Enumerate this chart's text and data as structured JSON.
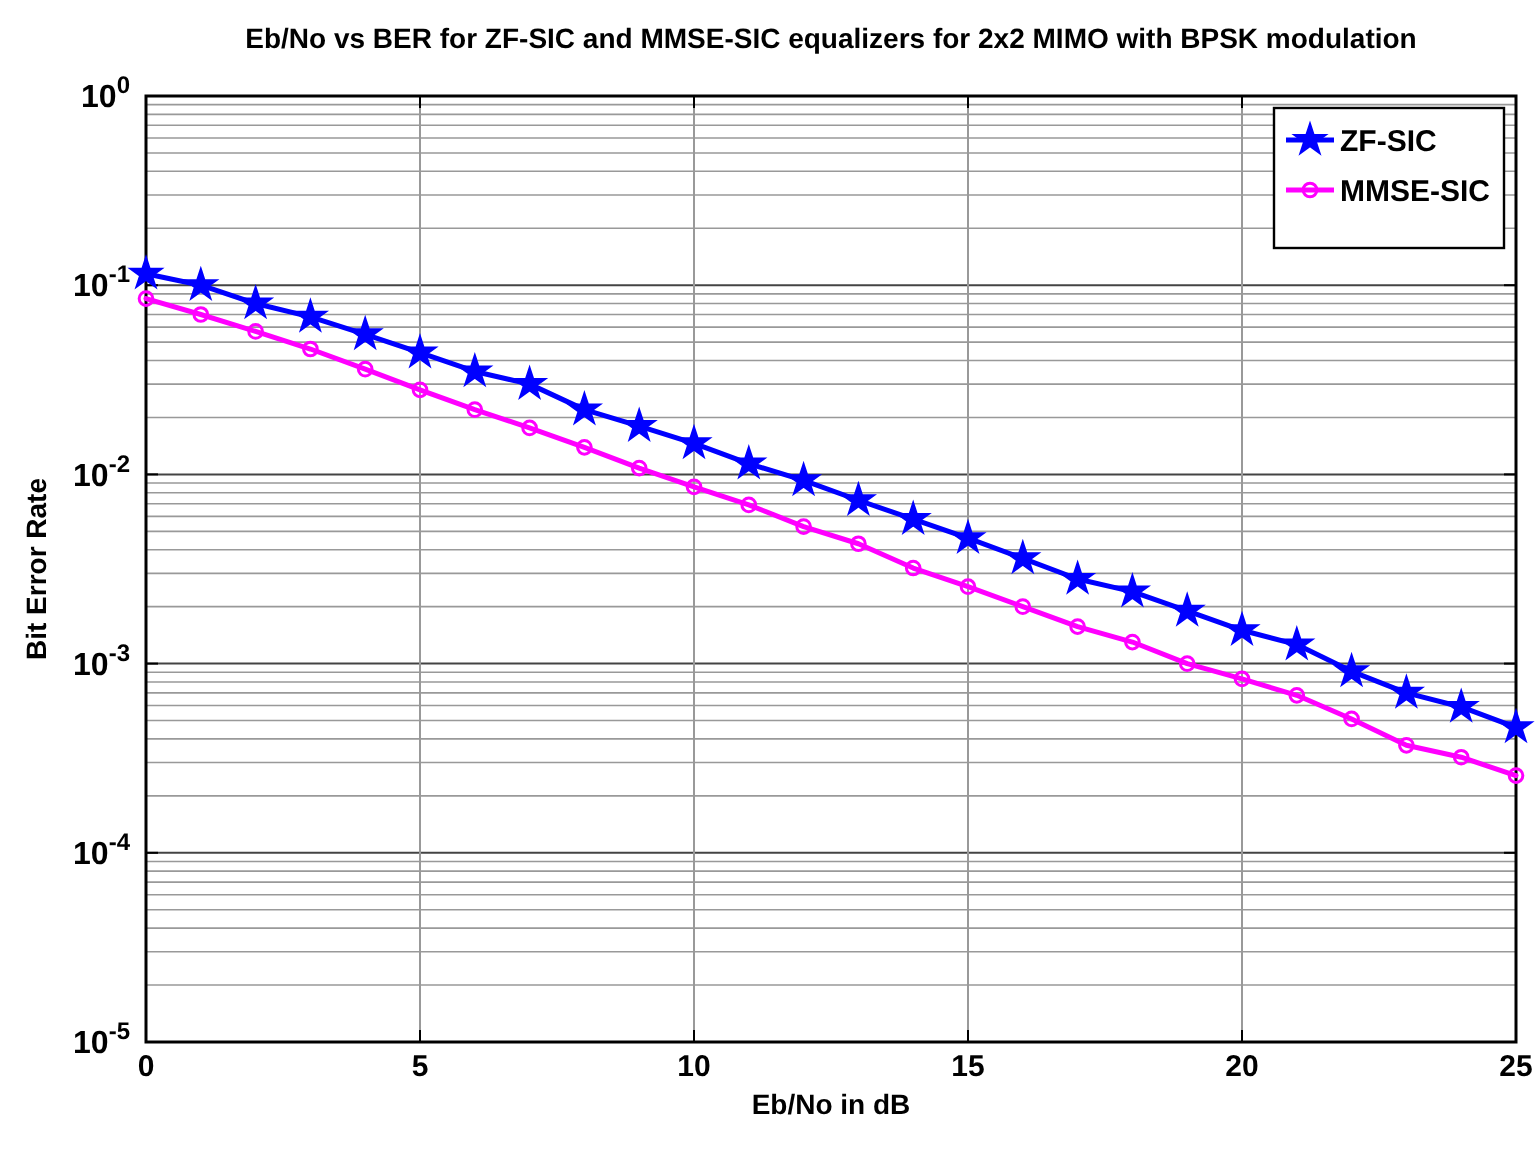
{
  "chart_data": {
    "type": "line",
    "title": "Eb/No vs BER for ZF-SIC and MMSE-SIC equalizers for 2x2 MIMO with BPSK modulation",
    "xlabel": "Eb/No in dB",
    "ylabel": "Bit Error Rate",
    "x": [
      0,
      1,
      2,
      3,
      4,
      5,
      6,
      7,
      8,
      9,
      10,
      11,
      12,
      13,
      14,
      15,
      16,
      17,
      18,
      19,
      20,
      21,
      22,
      23,
      24,
      25
    ],
    "series": [
      {
        "name": "ZF-SIC",
        "color": "#0000ff",
        "marker": "star",
        "values": [
          0.115,
          0.1,
          0.08,
          0.068,
          0.055,
          0.044,
          0.035,
          0.03,
          0.022,
          0.018,
          0.0146,
          0.0114,
          0.0093,
          0.0073,
          0.0058,
          0.0046,
          0.0036,
          0.0028,
          0.0024,
          0.0019,
          0.0015,
          0.00126,
          0.00091,
          0.0007,
          0.00059,
          0.00046
        ]
      },
      {
        "name": "MMSE-SIC",
        "color": "#ff00ff",
        "marker": "circle",
        "values": [
          0.085,
          0.07,
          0.057,
          0.046,
          0.036,
          0.028,
          0.022,
          0.0176,
          0.0139,
          0.0108,
          0.0086,
          0.0069,
          0.0053,
          0.0043,
          0.0032,
          0.00255,
          0.002,
          0.00157,
          0.0013,
          0.001,
          0.00083,
          0.00068,
          0.00051,
          0.00037,
          0.00032,
          0.000256
        ]
      }
    ],
    "log": "y",
    "xlim": [
      0,
      25
    ],
    "ylim": [
      1e-05,
      1
    ],
    "xticks": [
      0,
      5,
      10,
      15,
      20,
      25
    ],
    "yticks": [
      {
        "value": 1e-05,
        "label": "10$^{-5}$"
      },
      {
        "value": 0.0001,
        "label": "10$^{-4}$"
      },
      {
        "value": 0.001,
        "label": "10$^{-3}$"
      },
      {
        "value": 0.01,
        "label": "10$^{-2}$"
      },
      {
        "value": 0.1,
        "label": "10$^{-1}$"
      },
      {
        "value": 1,
        "label": "10$^{0}$"
      }
    ],
    "grid": true,
    "legend": "top right",
    "line_style": "solid"
  }
}
